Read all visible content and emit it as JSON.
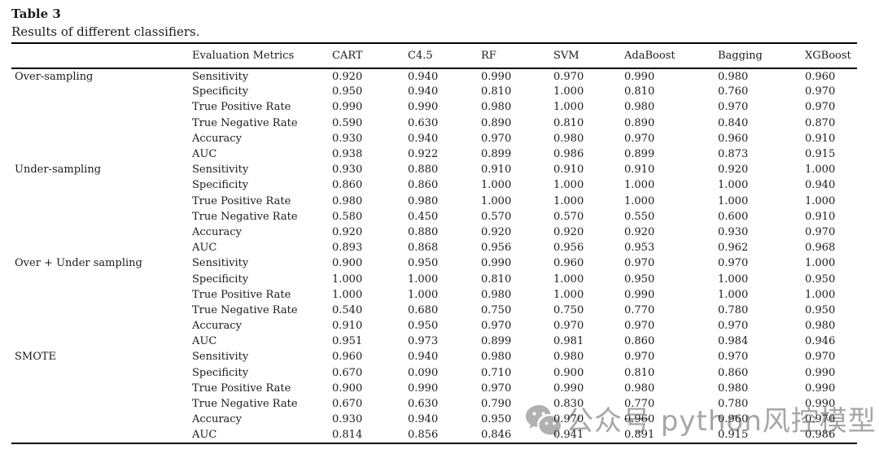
{
  "caption": {
    "label": "Table 3",
    "description": "Results of different classifiers."
  },
  "table": {
    "columns": [
      "Evaluation Metrics",
      "CART",
      "C4.5",
      "RF",
      "SVM",
      "AdaBoost",
      "Bagging",
      "XGBoost"
    ],
    "groups": [
      {
        "name": "Over-sampling",
        "rows": [
          {
            "metric": "Sensitivity",
            "values": [
              "0.920",
              "0.940",
              "0.990",
              "0.970",
              "0.990",
              "0.980",
              "0.960"
            ]
          },
          {
            "metric": "Specificity",
            "values": [
              "0.950",
              "0.940",
              "0.810",
              "1.000",
              "0.810",
              "0.760",
              "0.970"
            ]
          },
          {
            "metric": "True Positive Rate",
            "values": [
              "0.990",
              "0.990",
              "0.980",
              "1.000",
              "0.980",
              "0.970",
              "0.970"
            ]
          },
          {
            "metric": "True Negative Rate",
            "values": [
              "0.590",
              "0.630",
              "0.890",
              "0.810",
              "0.890",
              "0.840",
              "0.870"
            ]
          },
          {
            "metric": "Accuracy",
            "values": [
              "0.930",
              "0.940",
              "0.970",
              "0.980",
              "0.970",
              "0.960",
              "0.910"
            ]
          },
          {
            "metric": "AUC",
            "values": [
              "0.938",
              "0.922",
              "0.899",
              "0.986",
              "0.899",
              "0.873",
              "0.915"
            ]
          }
        ]
      },
      {
        "name": "Under-sampling",
        "rows": [
          {
            "metric": "Sensitivity",
            "values": [
              "0.930",
              "0.880",
              "0.910",
              "0.910",
              "0.910",
              "0.920",
              "1.000"
            ]
          },
          {
            "metric": "Specificity",
            "values": [
              "0.860",
              "0.860",
              "1.000",
              "1.000",
              "1.000",
              "1.000",
              "0.940"
            ]
          },
          {
            "metric": "True Positive Rate",
            "values": [
              "0.980",
              "0.980",
              "1.000",
              "1.000",
              "1.000",
              "1.000",
              "1.000"
            ]
          },
          {
            "metric": "True Negative Rate",
            "values": [
              "0.580",
              "0.450",
              "0.570",
              "0.570",
              "0.550",
              "0.600",
              "0.910"
            ]
          },
          {
            "metric": "Accuracy",
            "values": [
              "0.920",
              "0.880",
              "0.920",
              "0.920",
              "0.920",
              "0.930",
              "0.970"
            ]
          },
          {
            "metric": "AUC",
            "values": [
              "0.893",
              "0.868",
              "0.956",
              "0.956",
              "0.953",
              "0.962",
              "0.968"
            ]
          }
        ]
      },
      {
        "name": "Over + Under sampling",
        "rows": [
          {
            "metric": "Sensitivity",
            "values": [
              "0.900",
              "0.950",
              "0.990",
              "0.960",
              "0.970",
              "0.970",
              "1.000"
            ]
          },
          {
            "metric": "Specificity",
            "values": [
              "1.000",
              "1.000",
              "0.810",
              "1.000",
              "0.950",
              "1.000",
              "0.950"
            ]
          },
          {
            "metric": "True Positive Rate",
            "values": [
              "1.000",
              "1.000",
              "0.980",
              "1.000",
              "0.990",
              "1.000",
              "1.000"
            ]
          },
          {
            "metric": "True Negative Rate",
            "values": [
              "0.540",
              "0.680",
              "0.750",
              "0.750",
              "0.770",
              "0.780",
              "0.950"
            ]
          },
          {
            "metric": "Accuracy",
            "values": [
              "0.910",
              "0.950",
              "0.970",
              "0.970",
              "0.970",
              "0.970",
              "0.980"
            ]
          },
          {
            "metric": "AUC",
            "values": [
              "0.951",
              "0.973",
              "0.899",
              "0.981",
              "0.860",
              "0.984",
              "0.946"
            ]
          }
        ]
      },
      {
        "name": "SMOTE",
        "rows": [
          {
            "metric": "Sensitivity",
            "values": [
              "0.960",
              "0.940",
              "0.980",
              "0.980",
              "0.970",
              "0.970",
              "0.970"
            ]
          },
          {
            "metric": "Specificity",
            "values": [
              "0.670",
              "0.090",
              "0.710",
              "0.900",
              "0.810",
              "0.860",
              "0.990"
            ]
          },
          {
            "metric": "True Positive Rate",
            "values": [
              "0.900",
              "0.990",
              "0.970",
              "0.990",
              "0.980",
              "0.980",
              "0.990"
            ]
          },
          {
            "metric": "True Negative Rate",
            "values": [
              "0.670",
              "0.630",
              "0.790",
              "0.830",
              "0.770",
              "0.780",
              "0.990"
            ]
          },
          {
            "metric": "Accuracy",
            "values": [
              "0.930",
              "0.940",
              "0.950",
              "0.970",
              "0.960",
              "0.960",
              "0.970"
            ]
          },
          {
            "metric": "AUC",
            "values": [
              "0.814",
              "0.856",
              "0.846",
              "0.941",
              "0.891",
              "0.915",
              "0.986"
            ]
          }
        ]
      }
    ]
  },
  "watermark": {
    "icon": "wechat-icon",
    "text": "公众号 python风控模型",
    "color": "#969696"
  }
}
